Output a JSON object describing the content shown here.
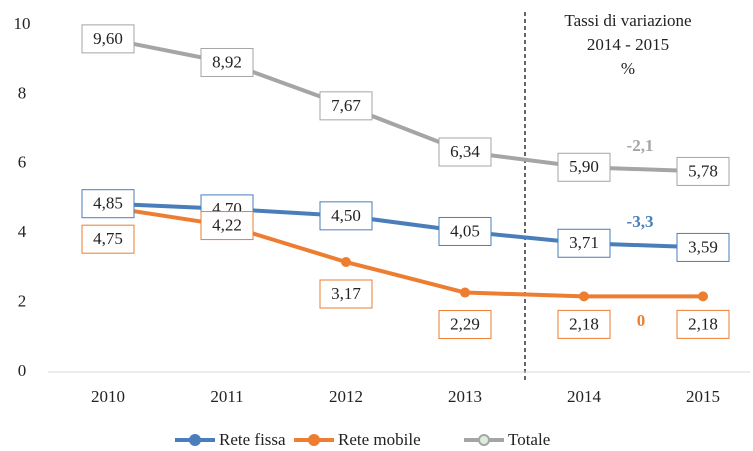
{
  "chart_data": {
    "type": "line",
    "categories": [
      "2010",
      "2011",
      "2012",
      "2013",
      "2014",
      "2015"
    ],
    "series": [
      {
        "name": "Rete fissa",
        "color": "#4a7ebb",
        "marker": true,
        "values": [
          4.85,
          4.7,
          4.5,
          4.05,
          3.71,
          3.59
        ],
        "value_labels": [
          "4,85",
          "4,70",
          "4,50",
          "4,05",
          "3,71",
          "3,59"
        ]
      },
      {
        "name": "Rete mobile",
        "color": "#ed7d31",
        "marker": true,
        "values": [
          4.75,
          4.22,
          3.17,
          2.29,
          2.18,
          2.18
        ],
        "value_labels": [
          "4,75",
          "4,22",
          "3,17",
          "2,29",
          "2,18",
          "2,18"
        ]
      },
      {
        "name": "Totale",
        "color": "#a5a5a5",
        "marker": false,
        "values": [
          9.6,
          8.92,
          7.67,
          6.34,
          5.9,
          5.78
        ],
        "value_labels": [
          "9,60",
          "8,92",
          "7,67",
          "6,34",
          "5,90",
          "5,78"
        ]
      }
    ],
    "ylim": [
      0,
      10
    ],
    "yticks": [
      0,
      2,
      4,
      6,
      8,
      10
    ],
    "annotations": {
      "heading": [
        "Tassi di variazione",
        "2014 - 2015",
        "%"
      ],
      "change_totale": "-2,1",
      "change_fissa": "-3,3",
      "change_mobile": "0"
    },
    "legend": "bottom"
  }
}
